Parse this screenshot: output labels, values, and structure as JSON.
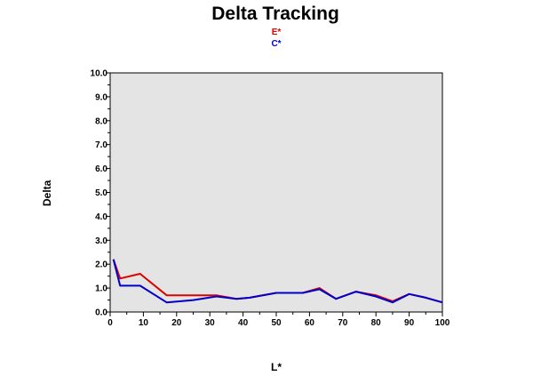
{
  "chart_data": {
    "type": "line",
    "title": "Delta Tracking",
    "xlabel": "L*",
    "ylabel": "Delta",
    "xlim": [
      0,
      100
    ],
    "ylim": [
      0,
      10
    ],
    "xticks": [
      "0",
      "10",
      "20",
      "30",
      "40",
      "50",
      "60",
      "70",
      "80",
      "90",
      "100"
    ],
    "yticks": [
      "0.0",
      "1.0",
      "2.0",
      "3.0",
      "4.0",
      "5.0",
      "6.0",
      "7.0",
      "8.0",
      "9.0",
      "10.0"
    ],
    "legend_position": "top-center",
    "grid": false,
    "plot_background": "#e4e4e4",
    "series": [
      {
        "name": "E*",
        "color": "#dd0000",
        "x": [
          1,
          3,
          9,
          17,
          25,
          32,
          38,
          42,
          50,
          58,
          63,
          68,
          74,
          80,
          85,
          90,
          95,
          100
        ],
        "y": [
          2.2,
          1.4,
          1.6,
          0.7,
          0.7,
          0.7,
          0.55,
          0.6,
          0.8,
          0.8,
          1.0,
          0.55,
          0.85,
          0.7,
          0.45,
          0.75,
          0.6,
          0.4
        ]
      },
      {
        "name": "C*",
        "color": "#0000cc",
        "x": [
          1,
          3,
          9,
          17,
          25,
          32,
          38,
          42,
          50,
          58,
          63,
          68,
          74,
          80,
          85,
          90,
          95,
          100
        ],
        "y": [
          2.2,
          1.1,
          1.1,
          0.4,
          0.5,
          0.65,
          0.55,
          0.6,
          0.8,
          0.8,
          0.95,
          0.55,
          0.85,
          0.65,
          0.4,
          0.75,
          0.6,
          0.4
        ]
      }
    ]
  }
}
